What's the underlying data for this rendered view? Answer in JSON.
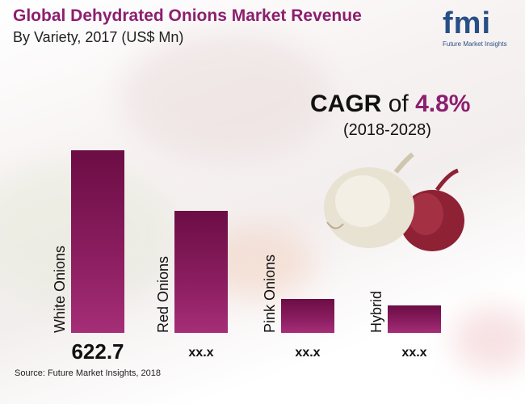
{
  "title": "Global Dehydrated Onions Market Revenue",
  "subtitle": "By Variety, 2017 (US$ Mn)",
  "logo": {
    "mark": "fmi",
    "name": "Future Market Insights"
  },
  "cagr": {
    "label": "CAGR",
    "of": "of",
    "value": "4.8%",
    "period": "(2018-2028)"
  },
  "source": "Source: Future Market Insights, 2018",
  "colors": {
    "accent": "#8c1f6e",
    "bar": "#8c1e61",
    "logo": "#274f86"
  },
  "chart_data": {
    "type": "bar",
    "title": "Global Dehydrated Onions Market Revenue",
    "subtitle": "By Variety, 2017 (US$ Mn)",
    "categories": [
      "White Onions",
      "Red Onions",
      "Pink Onions",
      "Hybrid"
    ],
    "values": [
      622.7,
      415,
      115,
      95
    ],
    "value_labels": [
      "622.7",
      "xx.x",
      "xx.x",
      "xx.x"
    ],
    "ylim": [
      0,
      622.7
    ],
    "grid": false,
    "legend": "none"
  }
}
